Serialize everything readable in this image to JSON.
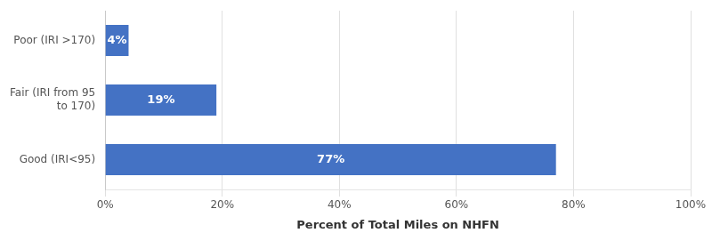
{
  "chart_data": {
    "type": "bar",
    "orientation": "horizontal",
    "categories": [
      "Good (IRI<95)",
      "Fair (IRI from 95\nto 170)",
      "Poor (IRI >170)"
    ],
    "values": [
      77,
      19,
      4
    ],
    "value_labels": [
      "77%",
      "19%",
      "4%"
    ],
    "data_labels": true,
    "color": "#4472C4",
    "xlabel": "Percent of Total Miles on NHFN",
    "xlim": [
      0,
      100
    ],
    "xticks": [
      {
        "value": 0,
        "label": "0%"
      },
      {
        "value": 20,
        "label": "20%"
      },
      {
        "value": 40,
        "label": "40%"
      },
      {
        "value": 60,
        "label": "60%"
      },
      {
        "value": 80,
        "label": "80%"
      },
      {
        "value": 100,
        "label": "100%"
      }
    ],
    "grid": true
  }
}
